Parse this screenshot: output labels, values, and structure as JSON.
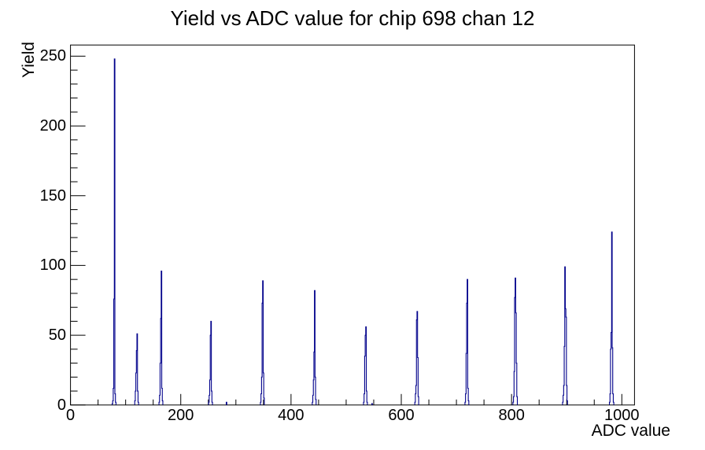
{
  "page": {
    "background_color": "#ffffff",
    "text_color": "#000000"
  },
  "chart_data": {
    "type": "bar",
    "subtype": "root-histogram-outline",
    "title": "Yield vs ADC value for chip 698 chan 12",
    "xlabel": "ADC value",
    "ylabel": "Yield",
    "xlim": [
      0,
      1023
    ],
    "ylim": [
      0,
      258
    ],
    "x_major_ticks": [
      0,
      200,
      400,
      600,
      800,
      1000
    ],
    "x_minor_tick_step": 50,
    "y_major_ticks": [
      0,
      50,
      100,
      150,
      200,
      250
    ],
    "y_minor_tick_step": 10,
    "grid": false,
    "legend": false,
    "line_color": "#00008b",
    "frame_color": "#000000",
    "peaks": [
      {
        "adc": 80,
        "yield": 248
      },
      {
        "adc": 121,
        "yield": 51
      },
      {
        "adc": 165,
        "yield": 96
      },
      {
        "adc": 255,
        "yield": 60
      },
      {
        "adc": 349,
        "yield": 89
      },
      {
        "adc": 443,
        "yield": 82
      },
      {
        "adc": 536,
        "yield": 56
      },
      {
        "adc": 629,
        "yield": 67
      },
      {
        "adc": 720,
        "yield": 90
      },
      {
        "adc": 807,
        "yield": 91
      },
      {
        "adc": 897,
        "yield": 99
      },
      {
        "adc": 982,
        "yield": 124
      }
    ],
    "bins": [
      [
        76,
        1
      ],
      [
        77,
        3
      ],
      [
        78,
        12
      ],
      [
        79,
        76
      ],
      [
        80,
        248
      ],
      [
        81,
        8
      ],
      [
        82,
        2
      ],
      [
        117,
        3
      ],
      [
        118,
        10
      ],
      [
        119,
        23
      ],
      [
        120,
        39
      ],
      [
        121,
        51
      ],
      [
        122,
        10
      ],
      [
        123,
        2
      ],
      [
        161,
        2
      ],
      [
        162,
        7
      ],
      [
        163,
        30
      ],
      [
        164,
        62
      ],
      [
        165,
        96
      ],
      [
        166,
        12
      ],
      [
        167,
        3
      ],
      [
        251,
        2
      ],
      [
        252,
        7
      ],
      [
        253,
        18
      ],
      [
        254,
        50
      ],
      [
        255,
        60
      ],
      [
        256,
        10
      ],
      [
        257,
        2
      ],
      [
        283,
        2
      ],
      [
        345,
        2
      ],
      [
        346,
        8
      ],
      [
        347,
        20
      ],
      [
        348,
        73
      ],
      [
        349,
        89
      ],
      [
        350,
        23
      ],
      [
        351,
        5
      ],
      [
        439,
        2
      ],
      [
        440,
        7
      ],
      [
        441,
        18
      ],
      [
        442,
        38
      ],
      [
        443,
        82
      ],
      [
        444,
        20
      ],
      [
        445,
        4
      ],
      [
        532,
        2
      ],
      [
        533,
        8
      ],
      [
        534,
        35
      ],
      [
        535,
        50
      ],
      [
        536,
        56
      ],
      [
        537,
        10
      ],
      [
        538,
        2
      ],
      [
        547,
        1
      ],
      [
        625,
        2
      ],
      [
        626,
        8
      ],
      [
        627,
        14
      ],
      [
        628,
        61
      ],
      [
        629,
        67
      ],
      [
        630,
        34
      ],
      [
        631,
        6
      ],
      [
        716,
        2
      ],
      [
        717,
        8
      ],
      [
        718,
        37
      ],
      [
        719,
        73
      ],
      [
        720,
        90
      ],
      [
        721,
        12
      ],
      [
        722,
        3
      ],
      [
        803,
        2
      ],
      [
        804,
        6
      ],
      [
        805,
        24
      ],
      [
        806,
        77
      ],
      [
        807,
        91
      ],
      [
        808,
        66
      ],
      [
        809,
        30
      ],
      [
        810,
        6
      ],
      [
        893,
        2
      ],
      [
        894,
        7
      ],
      [
        895,
        14
      ],
      [
        896,
        42
      ],
      [
        897,
        99
      ],
      [
        898,
        69
      ],
      [
        899,
        63
      ],
      [
        900,
        14
      ],
      [
        901,
        3
      ],
      [
        978,
        2
      ],
      [
        979,
        8
      ],
      [
        980,
        40
      ],
      [
        981,
        52
      ],
      [
        982,
        124
      ],
      [
        983,
        41
      ],
      [
        984,
        8
      ],
      [
        985,
        2
      ]
    ]
  }
}
